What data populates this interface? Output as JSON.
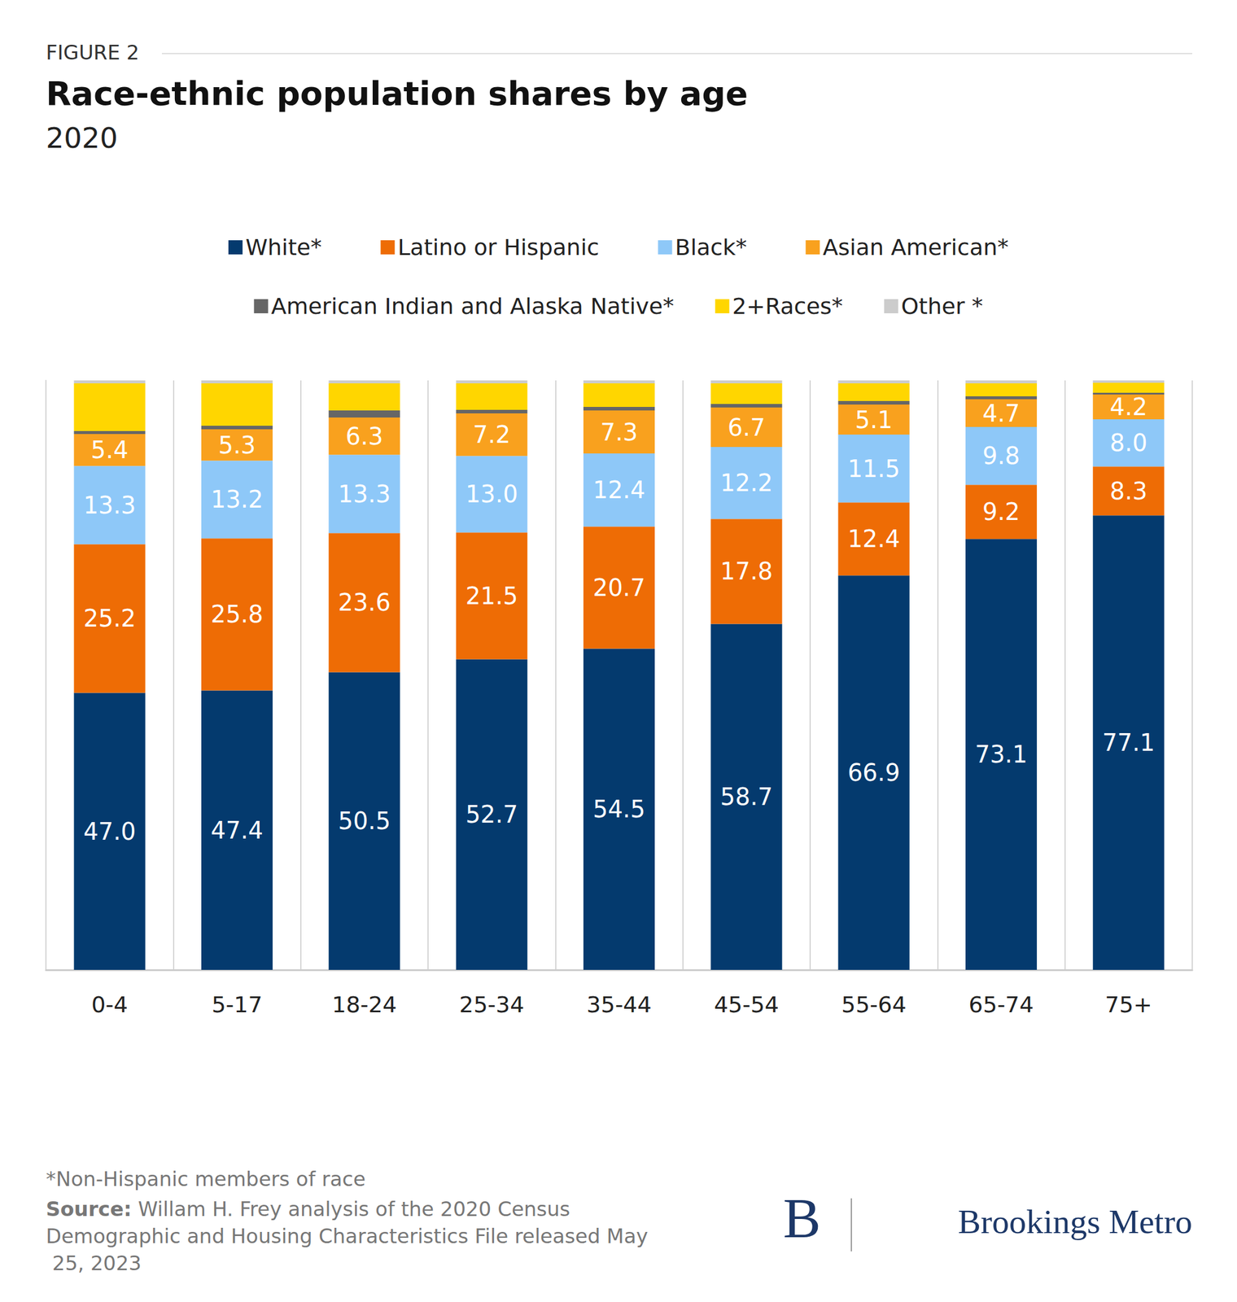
{
  "chart_data": {
    "type": "bar",
    "figure_label": "FIGURE 2",
    "title": "Race-ethnic population shares by age",
    "subtitle": "2020",
    "footnote": "*Non-Hispanic members of race",
    "source_label": "Source:",
    "source": "Willam H. Frey analysis of the 2020 Census Demographic and Housing Characteristics File released May 25, 2023",
    "brand_mark": "B",
    "brand": "Brookings Metro",
    "stacked": true,
    "tick_labels": "x",
    "grid": false,
    "legend": "top",
    "ylim": [
      0,
      100
    ],
    "categories": [
      "0-4",
      "5-17",
      "18-24",
      "25-34",
      "35-44",
      "45-54",
      "55-64",
      "65-74",
      "75+"
    ],
    "series": [
      {
        "name": "White*",
        "color": "#043a6e",
        "data_labels": true,
        "values": [
          47.0,
          47.4,
          50.5,
          52.7,
          54.5,
          58.7,
          66.9,
          73.1,
          77.1
        ],
        "value_labels": [
          "47.0",
          "47.4",
          "50.5",
          "52.7",
          "54.5",
          "58.7",
          "66.9",
          "73.1",
          "77.1"
        ]
      },
      {
        "name": "Latino or Hispanic",
        "color": "#ee6c05",
        "data_labels": true,
        "values": [
          25.2,
          25.8,
          23.6,
          21.5,
          20.7,
          17.8,
          12.4,
          9.2,
          8.3
        ],
        "value_labels": [
          "25.2",
          "25.8",
          "23.6",
          "21.5",
          "20.7",
          "17.8",
          "12.4",
          "9.2",
          "8.3"
        ]
      },
      {
        "name": "Black*",
        "color": "#8ec8f8",
        "data_labels": true,
        "values": [
          13.3,
          13.2,
          13.3,
          13.0,
          12.4,
          12.2,
          11.5,
          9.8,
          8.0
        ],
        "value_labels": [
          "13.3",
          "13.2",
          "13.3",
          "13.0",
          "12.4",
          "12.2",
          "11.5",
          "9.8",
          "8.0"
        ]
      },
      {
        "name": "Asian American*",
        "color": "#f9a11e",
        "data_labels": true,
        "values": [
          5.4,
          5.3,
          6.3,
          7.2,
          7.3,
          6.7,
          5.1,
          4.7,
          4.2
        ],
        "value_labels": [
          "5.4",
          "5.3",
          "6.3",
          "7.2",
          "7.3",
          "6.7",
          "5.1",
          "4.7",
          "4.2"
        ]
      },
      {
        "name": "American Indian and Alaska Native*",
        "color": "#666666",
        "values": [
          0.5,
          0.6,
          1.2,
          0.6,
          0.6,
          0.6,
          0.6,
          0.5,
          0.3
        ]
      },
      {
        "name": "2+Races*",
        "color": "#ffd600",
        "values": [
          8.1,
          7.2,
          4.6,
          4.5,
          4.0,
          3.5,
          3.0,
          2.2,
          1.7
        ]
      },
      {
        "name": "Other *",
        "color": "#cccccc",
        "values": [
          0.5,
          0.5,
          0.5,
          0.5,
          0.5,
          0.5,
          0.5,
          0.5,
          0.4
        ]
      }
    ]
  }
}
